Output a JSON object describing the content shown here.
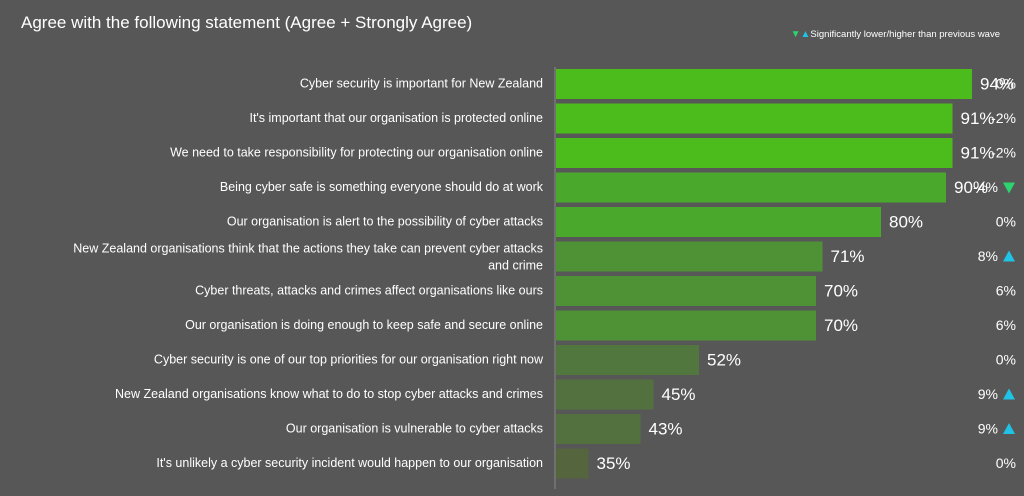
{
  "title": "Agree with the following statement (Agree + Strongly Agree)",
  "legend": {
    "text": "Significantly lower/higher than previous wave",
    "down_icon": "triangle-down-icon",
    "up_icon": "triangle-up-icon",
    "down_color": "#2dd36f",
    "up_color": "#1fc3e6"
  },
  "chart_data": {
    "type": "bar",
    "orientation": "horizontal",
    "xlim": [
      30,
      100
    ],
    "categories": [
      "Cyber security is important for New Zealand",
      "It's important that our organisation is protected online",
      "We need to take responsibility for protecting our organisation online",
      "Being cyber safe is something everyone should do at work",
      "Our organisation is alert to the possibility of cyber attacks",
      "New Zealand organisations think that the actions they take can prevent cyber attacks and crime",
      "Cyber threats, attacks and crimes affect organisations like ours",
      "Our organisation is doing enough to keep safe and secure online",
      "Cyber security is one of our top priorities for our organisation right now",
      "New Zealand organisations know what to do to stop cyber attacks and crimes",
      "Our organisation is vulnerable to cyber attacks",
      "It's unlikely a cyber security incident would happen to our organisation"
    ],
    "values": [
      94,
      91,
      91,
      90,
      80,
      71,
      70,
      70,
      52,
      45,
      43,
      35
    ],
    "value_labels": [
      "94%",
      "91%",
      "91%",
      "90%",
      "80%",
      "71%",
      "70%",
      "70%",
      "52%",
      "45%",
      "43%",
      "35%"
    ],
    "changes": [
      "0%",
      "-2%",
      "-2%",
      "-4%",
      "0%",
      "8%",
      "6%",
      "6%",
      "0%",
      "9%",
      "9%",
      "0%"
    ],
    "significance": [
      "",
      "",
      "",
      "down",
      "",
      "up",
      "",
      "",
      "",
      "up",
      "up",
      ""
    ],
    "bar_colors": [
      "#4cbc1c",
      "#4cbc1c",
      "#4cbc1c",
      "#4aa92c",
      "#4aa92c",
      "#4f9235",
      "#4f9235",
      "#4f9235",
      "#52773e",
      "#53703f",
      "#53703f",
      "#55663f"
    ],
    "grid": false
  }
}
